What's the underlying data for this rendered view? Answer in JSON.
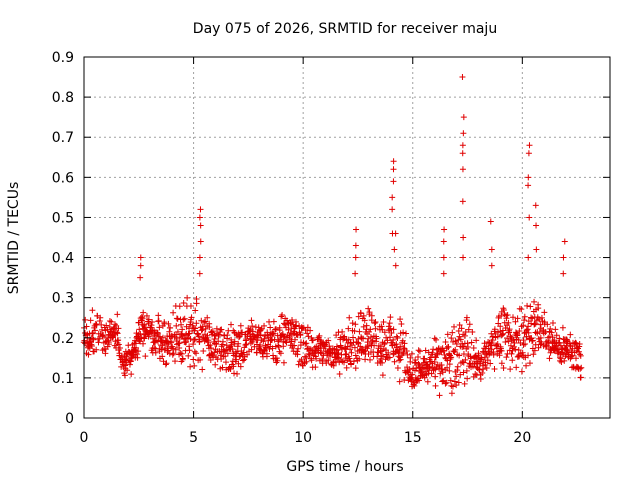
{
  "chart_data": {
    "type": "scatter",
    "title": "Day 075 of 2026, SRMTID for receiver maju",
    "xlabel": "GPS time / hours",
    "ylabel": "SRMTID / TECUs",
    "xlim": [
      0,
      24
    ],
    "ylim": [
      0,
      0.9
    ],
    "grid": true,
    "marker": "+",
    "marker_color": "#e00000",
    "x_ticks": [
      0,
      5,
      10,
      15,
      20
    ],
    "x_tick_labels": [
      "0",
      "5",
      "10",
      "15",
      "20"
    ],
    "y_ticks": [
      0,
      0.1,
      0.2,
      0.3,
      0.4,
      0.5,
      0.6,
      0.7,
      0.8,
      0.9
    ],
    "y_tick_labels": [
      "0",
      "0.1",
      "0.2",
      "0.3",
      "0.4",
      "0.5",
      "0.6",
      "0.7",
      "0.8",
      "0.9"
    ],
    "x_data_range": [
      0,
      22.7
    ],
    "series_profile": [
      [
        0.0,
        0.14,
        0.25
      ],
      [
        0.5,
        0.15,
        0.28
      ],
      [
        1.0,
        0.15,
        0.24
      ],
      [
        1.5,
        0.16,
        0.27
      ],
      [
        1.8,
        0.1,
        0.16
      ],
      [
        2.2,
        0.1,
        0.22
      ],
      [
        2.6,
        0.15,
        0.28
      ],
      [
        3.0,
        0.15,
        0.27
      ],
      [
        3.5,
        0.12,
        0.27
      ],
      [
        4.0,
        0.12,
        0.28
      ],
      [
        4.5,
        0.12,
        0.3
      ],
      [
        5.0,
        0.1,
        0.32
      ],
      [
        5.5,
        0.12,
        0.28
      ],
      [
        6.0,
        0.1,
        0.25
      ],
      [
        6.5,
        0.1,
        0.25
      ],
      [
        7.0,
        0.09,
        0.24
      ],
      [
        7.5,
        0.15,
        0.25
      ],
      [
        8.0,
        0.15,
        0.26
      ],
      [
        8.5,
        0.13,
        0.25
      ],
      [
        9.0,
        0.12,
        0.27
      ],
      [
        9.5,
        0.14,
        0.26
      ],
      [
        10.0,
        0.12,
        0.24
      ],
      [
        10.5,
        0.12,
        0.22
      ],
      [
        11.0,
        0.12,
        0.21
      ],
      [
        11.5,
        0.1,
        0.22
      ],
      [
        12.0,
        0.1,
        0.24
      ],
      [
        12.5,
        0.12,
        0.3
      ],
      [
        13.0,
        0.13,
        0.28
      ],
      [
        13.5,
        0.1,
        0.28
      ],
      [
        14.0,
        0.1,
        0.27
      ],
      [
        14.5,
        0.07,
        0.25
      ],
      [
        15.0,
        0.06,
        0.17
      ],
      [
        15.5,
        0.06,
        0.18
      ],
      [
        16.0,
        0.05,
        0.2
      ],
      [
        16.5,
        0.05,
        0.22
      ],
      [
        17.0,
        0.05,
        0.25
      ],
      [
        17.5,
        0.08,
        0.28
      ],
      [
        18.0,
        0.09,
        0.18
      ],
      [
        18.5,
        0.1,
        0.22
      ],
      [
        19.0,
        0.12,
        0.3
      ],
      [
        19.5,
        0.12,
        0.27
      ],
      [
        20.0,
        0.1,
        0.3
      ],
      [
        20.5,
        0.14,
        0.32
      ],
      [
        21.0,
        0.14,
        0.28
      ],
      [
        21.5,
        0.12,
        0.25
      ],
      [
        22.0,
        0.12,
        0.22
      ],
      [
        22.7,
        0.09,
        0.2
      ]
    ],
    "spikes": [
      {
        "x": 2.6,
        "y": [
          0.35,
          0.38,
          0.4
        ]
      },
      {
        "x": 5.3,
        "y": [
          0.36,
          0.4,
          0.44,
          0.48,
          0.5,
          0.52
        ]
      },
      {
        "x": 12.4,
        "y": [
          0.36,
          0.4,
          0.43,
          0.47
        ]
      },
      {
        "x": 14.1,
        "y": [
          0.46,
          0.52,
          0.55,
          0.59,
          0.62,
          0.64
        ]
      },
      {
        "x": 14.2,
        "y": [
          0.38,
          0.42,
          0.46
        ]
      },
      {
        "x": 16.4,
        "y": [
          0.36,
          0.4,
          0.44,
          0.47
        ]
      },
      {
        "x": 17.3,
        "y": [
          0.4,
          0.45,
          0.54,
          0.62,
          0.66,
          0.68,
          0.71,
          0.75,
          0.85
        ]
      },
      {
        "x": 18.6,
        "y": [
          0.38,
          0.42,
          0.49
        ]
      },
      {
        "x": 20.3,
        "y": [
          0.4,
          0.5,
          0.58,
          0.6,
          0.66,
          0.68
        ]
      },
      {
        "x": 20.6,
        "y": [
          0.42,
          0.48,
          0.53
        ]
      },
      {
        "x": 21.9,
        "y": [
          0.36,
          0.4,
          0.44
        ]
      }
    ]
  }
}
